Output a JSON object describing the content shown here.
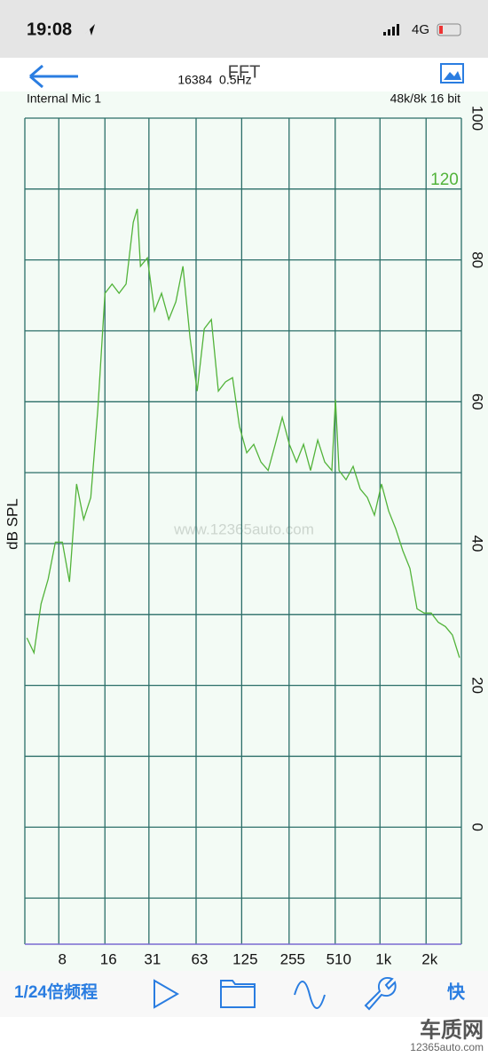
{
  "status_bar": {
    "time": "19:08",
    "network": "4G"
  },
  "toolbar": {
    "title": "FFT",
    "fft_info": "16384  0.5Hz"
  },
  "input": "Internal Mic 1",
  "format": "48k/8k 16 bit",
  "watermark": "www.12365auto.com",
  "bottom_bar": {
    "resolution": "1/24倍频程",
    "speed": "快"
  },
  "footer_logo": {
    "name": "车质网",
    "url": "12365auto.com"
  },
  "chart_data": {
    "type": "line",
    "ylabel": "dB SPL",
    "annotation": "120",
    "color": "#52b33a",
    "log_x": true,
    "grid": true,
    "xlim": [
      4.8,
      3400
    ],
    "ylim": [
      -16.5,
      100
    ],
    "xticks": [
      8,
      16,
      31,
      63,
      125,
      255,
      510,
      {
        "value": 1000,
        "label": "1k"
      },
      {
        "value": 2000,
        "label": "2k"
      }
    ],
    "yticks": [
      100,
      80,
      60,
      40,
      20,
      0
    ],
    "yminor": [
      90,
      70,
      50,
      30,
      10,
      -10
    ],
    "x": [
      4.95,
      5.51,
      6.13,
      6.82,
      7.59,
      8.44,
      9.39,
      10.45,
      11.62,
      12.93,
      14.39,
      16.0,
      17.8,
      19.8,
      22.0,
      24.5,
      26.0,
      27.3,
      30.3,
      33.7,
      37.5,
      41.8,
      46.5,
      51.7,
      57.5,
      64.0,
      71.2,
      79.2,
      88.1,
      98.0,
      109,
      121,
      135,
      150,
      167,
      186,
      207,
      230,
      256,
      285,
      317,
      352,
      392,
      436,
      485,
      512,
      540,
      600,
      668,
      743,
      827,
      920,
      1024,
      1139,
      1267,
      1410,
      1568,
      1745,
      1941,
      2159,
      2402,
      2673,
      2973,
      3307
    ],
    "values": [
      26.7,
      24.6,
      31.5,
      35.0,
      40.2,
      40.2,
      34.6,
      48.4,
      43.4,
      46.5,
      59.0,
      75.3,
      76.6,
      75.3,
      76.6,
      85.3,
      87.2,
      79.1,
      80.3,
      72.8,
      75.3,
      71.6,
      74.1,
      79.1,
      69.0,
      61.5,
      70.3,
      71.6,
      61.5,
      62.8,
      63.4,
      56.5,
      52.8,
      54.0,
      51.5,
      50.3,
      54.0,
      57.8,
      54.0,
      51.5,
      54.0,
      50.3,
      54.6,
      51.5,
      50.3,
      60.3,
      50.3,
      49.0,
      50.9,
      47.7,
      46.5,
      44.0,
      48.4,
      44.6,
      42.1,
      39.0,
      36.5,
      30.8,
      30.2,
      30.2,
      28.9,
      28.3,
      27.1,
      23.9
    ]
  }
}
